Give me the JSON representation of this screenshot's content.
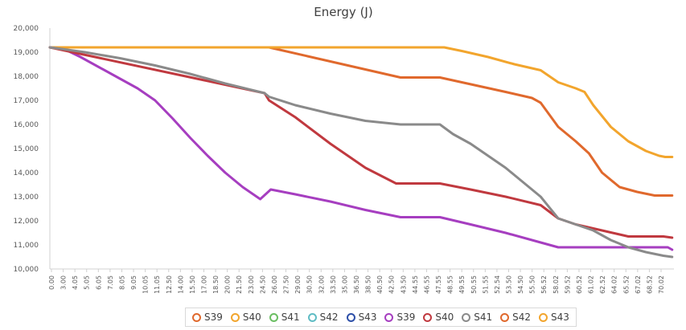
{
  "chart_data": {
    "type": "line",
    "title": "Energy (J)",
    "xlabel": "",
    "ylabel": "",
    "ylim": [
      10000,
      20000
    ],
    "y_ticks": [
      "10,000",
      "11,000",
      "12,000",
      "13,000",
      "14,000",
      "15,000",
      "16,000",
      "17,000",
      "18,000",
      "19,000",
      "20,000"
    ],
    "x_ticks": [
      "0.00",
      "3.00",
      "4.05",
      "5.05",
      "6.05",
      "7.05",
      "8.05",
      "9.05",
      "10.05",
      "11.05",
      "12.50",
      "14.00",
      "15.50",
      "17.00",
      "18.50",
      "20.00",
      "21.50",
      "23.00",
      "24.50",
      "26.00",
      "27.50",
      "29.00",
      "30.50",
      "32.00",
      "33.50",
      "35.00",
      "36.50",
      "38.50",
      "40.50",
      "42.50",
      "43.50",
      "44.55",
      "46.55",
      "47.55",
      "48.55",
      "49.55",
      "50.55",
      "51.55",
      "52.54",
      "53.50",
      "54.50",
      "55.50",
      "56.52",
      "58.02",
      "59.52",
      "60.52",
      "61.02",
      "62.52",
      "64.02",
      "65.52",
      "67.02",
      "68.52",
      "70.02"
    ],
    "xlim": [
      0,
      71.2
    ],
    "grid": false,
    "legend": "bottom",
    "series": [
      {
        "name": "S39",
        "color": "#E0692D",
        "x": [
          0,
          25,
          40,
          44.5,
          52,
          55,
          56,
          58,
          60,
          61.5,
          63,
          65,
          67,
          69,
          70,
          71
        ],
        "values": [
          19200,
          19200,
          17950,
          17950,
          17350,
          17100,
          16900,
          15900,
          15300,
          14800,
          14000,
          13400,
          13200,
          13050,
          13050,
          13050
        ]
      },
      {
        "name": "S40",
        "color": "#F2A52D",
        "x": [
          0,
          10,
          20,
          30,
          40,
          45,
          47,
          50,
          53,
          56,
          58,
          60,
          61,
          62,
          64,
          66,
          68,
          69.5,
          70.2,
          71
        ],
        "values": [
          19200,
          19200,
          19200,
          19200,
          19200,
          19200,
          19050,
          18800,
          18500,
          18250,
          17750,
          17500,
          17350,
          16800,
          15900,
          15300,
          14900,
          14700,
          14650,
          14650
        ]
      },
      {
        "name": "S41",
        "color": "#6BBE63",
        "x": [],
        "values": []
      },
      {
        "name": "S42",
        "color": "#5FBCC4",
        "x": [],
        "values": []
      },
      {
        "name": "S43",
        "color": "#2D4FA8",
        "x": [],
        "values": []
      },
      {
        "name": "S39",
        "color": "#A63EC0",
        "x": [
          0,
          1.8,
          3.5,
          6,
          8,
          10,
          12,
          14,
          16,
          18,
          20,
          22,
          24,
          25.2,
          28,
          32,
          36,
          40,
          44.5,
          48,
          52,
          56,
          58,
          60,
          64,
          68,
          70.5,
          71
        ],
        "values": [
          19200,
          19100,
          18800,
          18300,
          17900,
          17500,
          17000,
          16250,
          15450,
          14700,
          14000,
          13400,
          12900,
          13300,
          13100,
          12800,
          12450,
          12150,
          12150,
          11850,
          11500,
          11100,
          10900,
          10900,
          10900,
          10900,
          10900,
          10800
        ]
      },
      {
        "name": "S40",
        "color": "#C0393F",
        "x": [
          0,
          24.5,
          25,
          28,
          32,
          36,
          39.5,
          40,
          44.5,
          48,
          52,
          56,
          58,
          60,
          63,
          66,
          68,
          70,
          71
        ],
        "values": [
          19200,
          17300,
          17000,
          16300,
          15200,
          14200,
          13550,
          13550,
          13550,
          13300,
          13000,
          12650,
          12100,
          11850,
          11600,
          11350,
          11350,
          11350,
          11300
        ]
      },
      {
        "name": "S41",
        "color": "#8A8A8A",
        "x": [
          0,
          4,
          8,
          12,
          16,
          20,
          24.5,
          25,
          28,
          32,
          36,
          40,
          43,
          44.5,
          46,
          48,
          50,
          52,
          54,
          56,
          58,
          60,
          62,
          64,
          66,
          68,
          70,
          71
        ],
        "values": [
          19200,
          19000,
          18750,
          18450,
          18100,
          17700,
          17300,
          17150,
          16800,
          16450,
          16150,
          16000,
          16000,
          16000,
          15600,
          15200,
          14700,
          14200,
          13600,
          13000,
          12100,
          11850,
          11600,
          11200,
          10900,
          10700,
          10550,
          10500
        ]
      },
      {
        "name": "S42",
        "color": "#E0692D",
        "x": [],
        "values": []
      },
      {
        "name": "S43",
        "color": "#F2A52D",
        "x": [],
        "values": []
      }
    ]
  },
  "legend_items": [
    "S39",
    "S40",
    "S41",
    "S42",
    "S43",
    "S39",
    "S40",
    "S41",
    "S42",
    "S43"
  ]
}
